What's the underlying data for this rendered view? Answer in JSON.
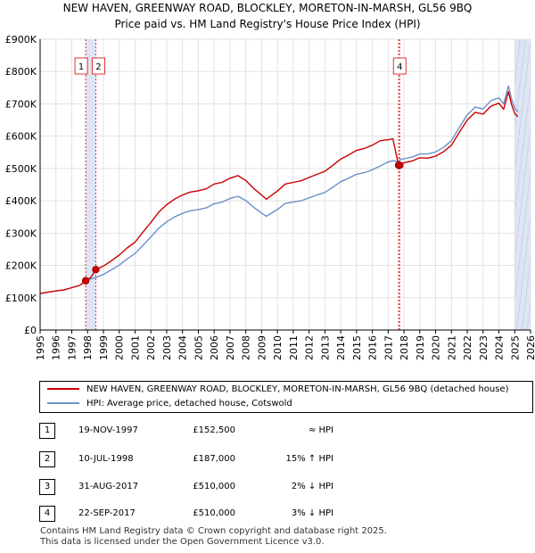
{
  "header": {
    "title_line1": "NEW HAVEN, GREENWAY ROAD, BLOCKLEY, MORETON-IN-MARSH, GL56 9BQ",
    "title_line2": "Price paid vs. HM Land Registry's House Price Index (HPI)"
  },
  "colors": {
    "property": "#cc0000",
    "hpi": "#6b8fc9",
    "marker_line": "#e03030",
    "shade": "#dde5f5"
  },
  "chart_data": {
    "type": "line",
    "xlabel": "",
    "ylabel": "",
    "xlim": [
      1995,
      2026
    ],
    "ylim": [
      0,
      900000
    ],
    "x_ticks": [
      1995,
      1996,
      1997,
      1998,
      1999,
      2000,
      2001,
      2002,
      2003,
      2004,
      2005,
      2006,
      2007,
      2008,
      2009,
      2010,
      2011,
      2012,
      2013,
      2014,
      2015,
      2016,
      2017,
      2018,
      2019,
      2020,
      2021,
      2022,
      2023,
      2024,
      2025,
      2026
    ],
    "x_tick_labels": [
      "1995",
      "1996",
      "1997",
      "1998",
      "1999",
      "2000",
      "2001",
      "2002",
      "2003",
      "2004",
      "2005",
      "2006",
      "2007",
      "2008",
      "2009",
      "2010",
      "2011",
      "2012",
      "2013",
      "2014",
      "2015",
      "2016",
      "2017",
      "2018",
      "2019",
      "2020",
      "2021",
      "2022",
      "2023",
      "2024",
      "2025",
      "2026"
    ],
    "y_ticks": [
      0,
      100000,
      200000,
      300000,
      400000,
      500000,
      600000,
      700000,
      800000,
      900000
    ],
    "y_tick_labels": [
      "£0",
      "£100K",
      "£200K",
      "£300K",
      "£400K",
      "£500K",
      "£600K",
      "£700K",
      "£800K",
      "£900K"
    ],
    "shaded_ranges": [
      [
        1997.88,
        1998.52
      ],
      [
        2025.0,
        2026.0
      ]
    ],
    "series": [
      {
        "name": "NEW HAVEN, GREENWAY ROAD, BLOCKLEY, MORETON-IN-MARSH, GL56 9BQ (detached house)",
        "x": [
          1995,
          1995.5,
          1996,
          1996.5,
          1997,
          1997.5,
          1997.88,
          1998.2,
          1998.52,
          1999,
          1999.5,
          2000,
          2000.5,
          2001,
          2001.5,
          2002,
          2002.5,
          2003,
          2003.5,
          2004,
          2004.5,
          2005,
          2005.5,
          2006,
          2006.5,
          2007,
          2007.5,
          2008,
          2008.5,
          2009,
          2009.3,
          2010,
          2010.5,
          2011,
          2011.5,
          2012,
          2012.5,
          2013,
          2013.5,
          2014,
          2014.5,
          2015,
          2015.5,
          2016,
          2016.5,
          2017,
          2017.3,
          2017.66,
          2017.73,
          2018,
          2018.5,
          2019,
          2019.5,
          2020,
          2020.5,
          2021,
          2021.5,
          2022,
          2022.5,
          2023,
          2023.5,
          2024,
          2024.3,
          2024.6,
          2024.8,
          2025.0,
          2025.2
        ],
        "values": [
          113000,
          117000,
          121000,
          124000,
          131000,
          138000,
          152500,
          163000,
          187000,
          198000,
          214000,
          232000,
          254000,
          272000,
          303000,
          333000,
          365000,
          388000,
          405000,
          418000,
          427000,
          431000,
          437000,
          452000,
          457000,
          470000,
          478000,
          463000,
          438000,
          418000,
          405000,
          430000,
          452000,
          457000,
          462000,
          472000,
          482000,
          491000,
          510000,
          529000,
          542000,
          556000,
          562000,
          572000,
          586000,
          589000,
          592000,
          510000,
          510000,
          518000,
          523000,
          533000,
          532000,
          538000,
          552000,
          572000,
          612000,
          650000,
          674000,
          668000,
          693000,
          702000,
          683000,
          738000,
          698000,
          670000,
          660000
        ]
      },
      {
        "name": "HPI: Average price, detached house, Cotswold",
        "x": [
          1995,
          1995.5,
          1996,
          1996.5,
          1997,
          1997.5,
          1997.88,
          1998.2,
          1998.52,
          1999,
          1999.5,
          2000,
          2000.5,
          2001,
          2001.5,
          2002,
          2002.5,
          2003,
          2003.5,
          2004,
          2004.5,
          2005,
          2005.5,
          2006,
          2006.5,
          2007,
          2007.5,
          2008,
          2008.5,
          2009,
          2009.3,
          2010,
          2010.5,
          2011,
          2011.5,
          2012,
          2012.5,
          2013,
          2013.5,
          2014,
          2014.5,
          2015,
          2015.5,
          2016,
          2016.5,
          2017,
          2017.3,
          2017.66,
          2017.73,
          2018,
          2018.5,
          2019,
          2019.5,
          2020,
          2020.5,
          2021,
          2021.5,
          2022,
          2022.5,
          2023,
          2023.5,
          2024,
          2024.3,
          2024.6,
          2024.8,
          2025.0,
          2025.2
        ],
        "values": [
          113000,
          117000,
          121000,
          124000,
          131000,
          138000,
          152500,
          158000,
          162500,
          172000,
          186000,
          201000,
          220000,
          237000,
          262000,
          288000,
          315000,
          335000,
          350000,
          361000,
          369000,
          373000,
          378000,
          391000,
          396000,
          407000,
          414000,
          401000,
          380000,
          362000,
          352000,
          373000,
          392000,
          396000,
          400000,
          409000,
          418000,
          426000,
          442000,
          459000,
          470000,
          482000,
          487000,
          496000,
          508000,
          520000,
          524000,
          521000,
          527000,
          530000,
          535000,
          545000,
          545000,
          551000,
          565000,
          586000,
          627000,
          666000,
          690000,
          684000,
          710000,
          719000,
          700000,
          755000,
          715000,
          686000,
          676000
        ]
      }
    ],
    "transactions": [
      {
        "id": "1",
        "date": "19-NOV-1997",
        "price": "£152,500",
        "hpi": "≈ HPI",
        "x": 1997.88,
        "value": 152500
      },
      {
        "id": "2",
        "date": "10-JUL-1998",
        "price": "£187,000",
        "hpi": "15% ↑ HPI",
        "x": 1998.52,
        "value": 187000
      },
      {
        "id": "3",
        "date": "31-AUG-2017",
        "price": "£510,000",
        "hpi": "2% ↓ HPI",
        "x": 2017.66,
        "value": 510000
      },
      {
        "id": "4",
        "date": "22-SEP-2017",
        "price": "£510,000",
        "hpi": "3% ↓ HPI",
        "x": 2017.73,
        "value": 510000
      }
    ],
    "marker_labels": [
      {
        "id": "1",
        "x": 1997.88
      },
      {
        "id": "2",
        "x": 1998.52
      },
      {
        "id": "4",
        "x": 2017.73
      }
    ]
  },
  "legend": {
    "property_label": "NEW HAVEN, GREENWAY ROAD, BLOCKLEY, MORETON-IN-MARSH, GL56 9BQ (detached house)",
    "hpi_label": "HPI: Average price, detached house, Cotswold"
  },
  "footer": {
    "line1": "Contains HM Land Registry data © Crown copyright and database right 2025.",
    "line2": "This data is licensed under the Open Government Licence v3.0."
  }
}
